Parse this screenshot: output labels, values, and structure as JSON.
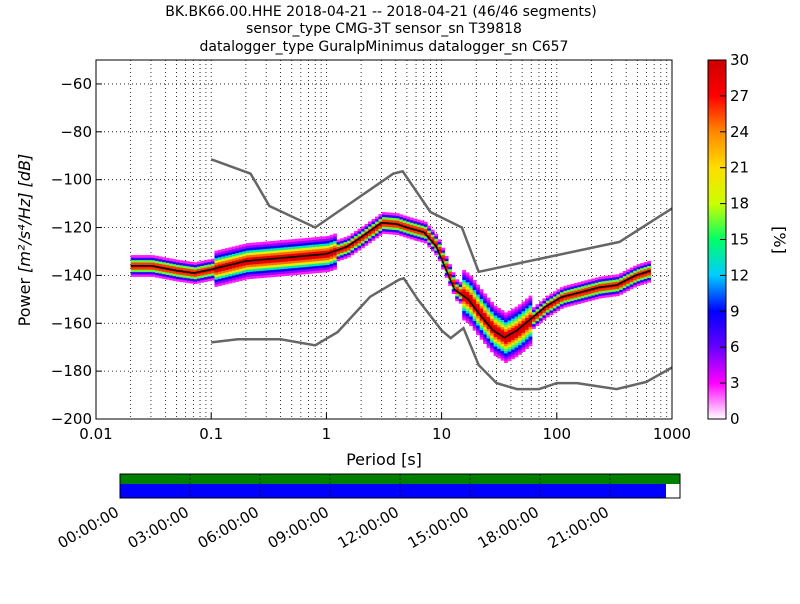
{
  "chart_data": {
    "type": "heatmap",
    "title_lines": [
      "BK.BK66.00.HHE   2018-04-21 -- 2018-04-21  (46/46 segments)",
      "sensor_type CMG-3T sensor_sn T39818",
      "datalogger_type GuralpMinimus datalogger_sn C657"
    ],
    "xlabel": "Period [s]",
    "ylabel_prefix": "Power",
    "ylabel_units": "[m²/s⁴/Hz] [dB]",
    "x_scale": "log",
    "xlim": [
      0.01,
      1000
    ],
    "ylim": [
      -200,
      -50
    ],
    "x_ticks": [
      {
        "value": 0.01,
        "label": "0.01"
      },
      {
        "value": 0.1,
        "label": "0.1"
      },
      {
        "value": 1,
        "label": "1"
      },
      {
        "value": 10,
        "label": "10"
      },
      {
        "value": 100,
        "label": "100"
      },
      {
        "value": 1000,
        "label": "1000"
      }
    ],
    "y_ticks": [
      {
        "value": -60,
        "label": "−60"
      },
      {
        "value": -80,
        "label": "−80"
      },
      {
        "value": -100,
        "label": "−100"
      },
      {
        "value": -120,
        "label": "−120"
      },
      {
        "value": -140,
        "label": "−140"
      },
      {
        "value": -160,
        "label": "−160"
      },
      {
        "value": -180,
        "label": "−180"
      },
      {
        "value": -200,
        "label": "−200"
      }
    ],
    "grid": "dotted vertical",
    "colorbar": {
      "label": "[%]",
      "range": [
        0,
        30
      ],
      "ticks": [
        {
          "value": 0,
          "label": "0"
        },
        {
          "value": 3,
          "label": "3"
        },
        {
          "value": 6,
          "label": "6"
        },
        {
          "value": 9,
          "label": "9"
        },
        {
          "value": 12,
          "label": "12"
        },
        {
          "value": 15,
          "label": "15"
        },
        {
          "value": 18,
          "label": "18"
        },
        {
          "value": 21,
          "label": "21"
        },
        {
          "value": 24,
          "label": "24"
        },
        {
          "value": 27,
          "label": "27"
        },
        {
          "value": 30,
          "label": "30"
        }
      ],
      "colors": [
        "#ffffff",
        "#ff00ff",
        "#6600ff",
        "#0000ff",
        "#00ccff",
        "#00ff66",
        "#ccff00",
        "#ffdd00",
        "#ff8800",
        "#ff0000",
        "#cc0000"
      ]
    },
    "series": [
      {
        "role": "high_noise_model",
        "color": "#666666",
        "points": [
          [
            0.1,
            -91.5
          ],
          [
            0.22,
            -97.5
          ],
          [
            0.32,
            -111
          ],
          [
            0.8,
            -120
          ],
          [
            3.8,
            -97.5
          ],
          [
            4.6,
            -96.5
          ],
          [
            8,
            -113.5
          ],
          [
            15,
            -120
          ],
          [
            21,
            -138.5
          ],
          [
            350,
            -126
          ],
          [
            1000,
            -112
          ]
        ]
      },
      {
        "role": "low_noise_model",
        "color": "#666666",
        "points": [
          [
            0.1,
            -168
          ],
          [
            0.17,
            -166.7
          ],
          [
            0.4,
            -166.7
          ],
          [
            0.8,
            -169.2
          ],
          [
            1.25,
            -163.7
          ],
          [
            2.4,
            -148.9
          ],
          [
            4.3,
            -141.7
          ],
          [
            4.7,
            -141.2
          ],
          [
            6.2,
            -150
          ],
          [
            10,
            -163
          ],
          [
            12,
            -166.2
          ],
          [
            15.5,
            -162
          ],
          [
            21,
            -177.5
          ],
          [
            30,
            -185
          ],
          [
            45,
            -187.5
          ],
          [
            70,
            -187.5
          ],
          [
            100,
            -185
          ],
          [
            150,
            -185
          ],
          [
            330,
            -187.5
          ],
          [
            600,
            -184.5
          ],
          [
            1000,
            -178.5
          ]
        ]
      },
      {
        "role": "mode_curve",
        "color": "#000000",
        "points": [
          [
            0.02,
            -136
          ],
          [
            0.03,
            -136
          ],
          [
            0.05,
            -138
          ],
          [
            0.07,
            -139
          ],
          [
            0.1,
            -137.5
          ],
          [
            0.2,
            -134
          ],
          [
            0.35,
            -133
          ],
          [
            0.6,
            -132
          ],
          [
            1,
            -131
          ],
          [
            1.5,
            -128
          ],
          [
            2,
            -124
          ],
          [
            3,
            -118
          ],
          [
            4,
            -118.5
          ],
          [
            5,
            -120
          ],
          [
            7,
            -122
          ],
          [
            9,
            -128
          ],
          [
            11,
            -138
          ],
          [
            13,
            -146
          ],
          [
            17,
            -150
          ],
          [
            22,
            -157
          ],
          [
            28,
            -163
          ],
          [
            35,
            -166
          ],
          [
            45,
            -163
          ],
          [
            60,
            -158
          ],
          [
            80,
            -153
          ],
          [
            110,
            -149
          ],
          [
            160,
            -147
          ],
          [
            230,
            -145
          ],
          [
            330,
            -144
          ],
          [
            480,
            -140
          ],
          [
            650,
            -138
          ]
        ]
      }
    ],
    "timeline": {
      "ticks": [
        "00:00:00",
        "03:00:00",
        "06:00:00",
        "09:00:00",
        "12:00:00",
        "15:00:00",
        "18:00:00",
        "21:00:00"
      ],
      "top_bar_color": "#008000",
      "bottom_bar_color": "#0000ff",
      "bottom_bar_fill_fraction": 0.975
    }
  }
}
